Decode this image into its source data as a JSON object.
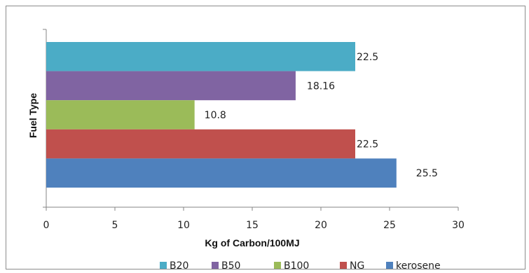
{
  "chart_data": {
    "type": "bar",
    "orientation": "horizontal",
    "title": "",
    "xlabel": "Kg of Carbon/100MJ",
    "ylabel": "Fuel Type",
    "xlim": [
      0,
      30
    ],
    "xticks": [
      "0",
      "5",
      "10",
      "15",
      "20",
      "25",
      "30"
    ],
    "grid": false,
    "legend_position": "bottom",
    "series": [
      {
        "name": "B20",
        "value": 22.5,
        "label": "22.5",
        "color": "#4bacc6"
      },
      {
        "name": "B50",
        "value": 18.16,
        "label": "18.16",
        "color": "#8064a2"
      },
      {
        "name": "B100",
        "value": 10.8,
        "label": "10.8",
        "color": "#9bbb59"
      },
      {
        "name": "NG",
        "value": 22.5,
        "label": "22.5",
        "color": "#c0504d"
      },
      {
        "name": "kerosene",
        "value": 25.5,
        "label": "25.5",
        "color": "#4f81bd"
      }
    ]
  }
}
